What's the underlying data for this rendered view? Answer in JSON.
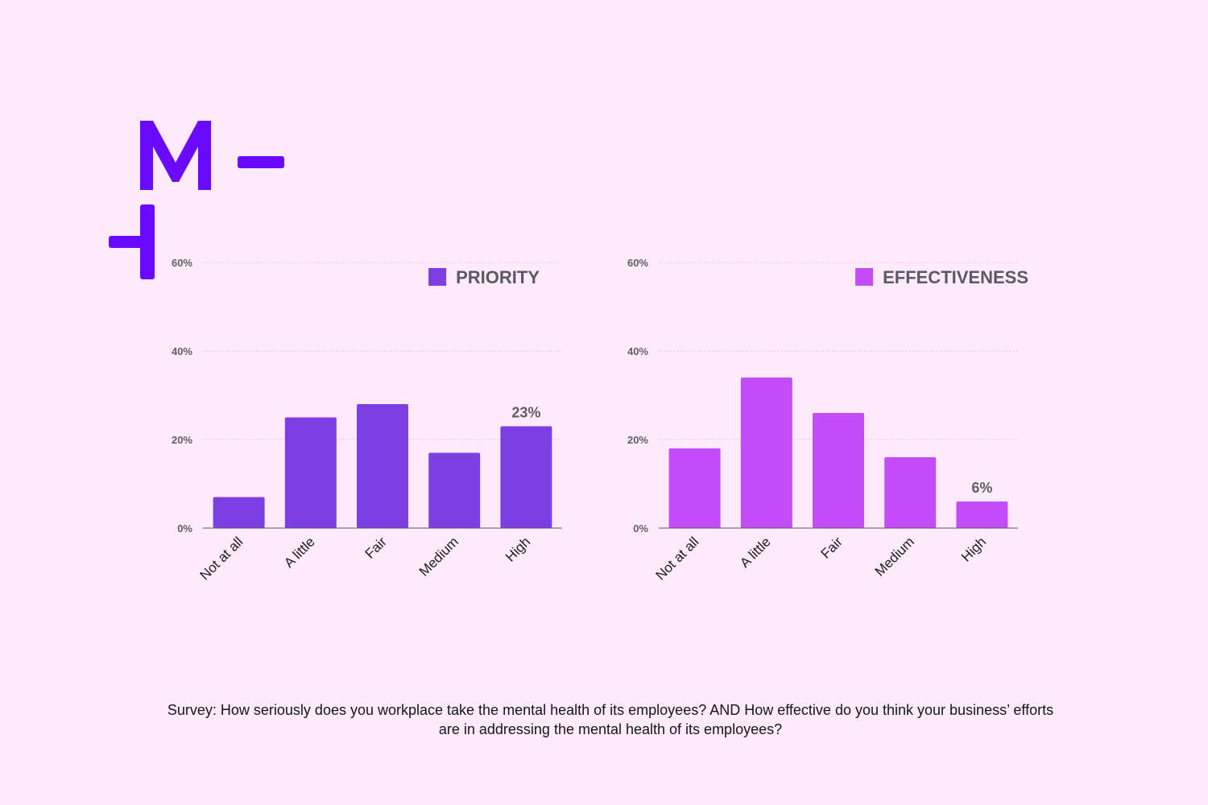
{
  "logo": {
    "name": "brand-logo",
    "letter": "M",
    "color": "#6a0aff"
  },
  "chart_data": [
    {
      "type": "bar",
      "id": "priority",
      "legend": "PRIORITY",
      "legend_placement": "top-right",
      "color": "#7b3fe4",
      "categories": [
        "Not at all",
        "A little",
        "Fair",
        "Medium",
        "High"
      ],
      "values": [
        7,
        25,
        28,
        17,
        23
      ],
      "data_labels": [
        null,
        null,
        null,
        null,
        "23%"
      ],
      "yticks": [
        "0%",
        "20%",
        "40%",
        "60%"
      ],
      "ytick_values": [
        0,
        20,
        40,
        60
      ],
      "ylim": [
        0,
        60
      ],
      "grid": true,
      "xlabel": "",
      "ylabel": "",
      "title": ""
    },
    {
      "type": "bar",
      "id": "effectiveness",
      "legend": "EFFECTIVENESS",
      "legend_placement": "top-right",
      "color": "#c44cfb",
      "categories": [
        "Not at all",
        "A little",
        "Fair",
        "Medium",
        "High"
      ],
      "values": [
        18,
        34,
        26,
        16,
        6
      ],
      "data_labels": [
        null,
        null,
        null,
        null,
        "6%"
      ],
      "yticks": [
        "0%",
        "20%",
        "40%",
        "60%"
      ],
      "ytick_values": [
        0,
        20,
        40,
        60
      ],
      "ylim": [
        0,
        60
      ],
      "grid": true,
      "xlabel": "",
      "ylabel": "",
      "title": ""
    }
  ],
  "caption": "Survey: How seriously does you workplace take the mental health of its employees? AND How effective do you think your business’ efforts are in addressing the mental health of its employees?"
}
